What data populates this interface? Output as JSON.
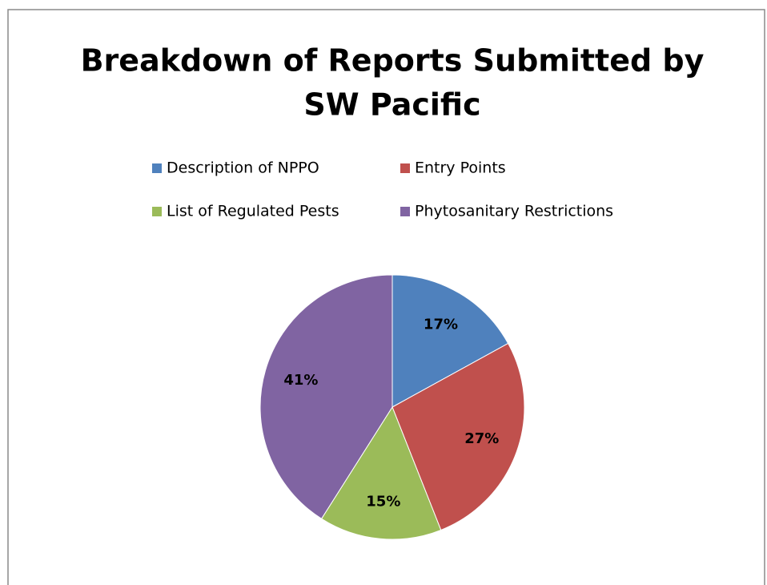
{
  "chart_data": {
    "type": "pie",
    "title": [
      "Breakdown of Reports Submitted by",
      "SW Pacific"
    ],
    "categories": [
      "Description of NPPO",
      "Entry Points",
      "List of Regulated Pests",
      "Phytosanitary Restrictions"
    ],
    "values": [
      17,
      27,
      15,
      41
    ],
    "value_labels": [
      "17%",
      "27%",
      "15%",
      "41%"
    ],
    "colors": [
      "#4f81bd",
      "#c0504d",
      "#9bbb59",
      "#8064a2"
    ],
    "legend": "top"
  }
}
